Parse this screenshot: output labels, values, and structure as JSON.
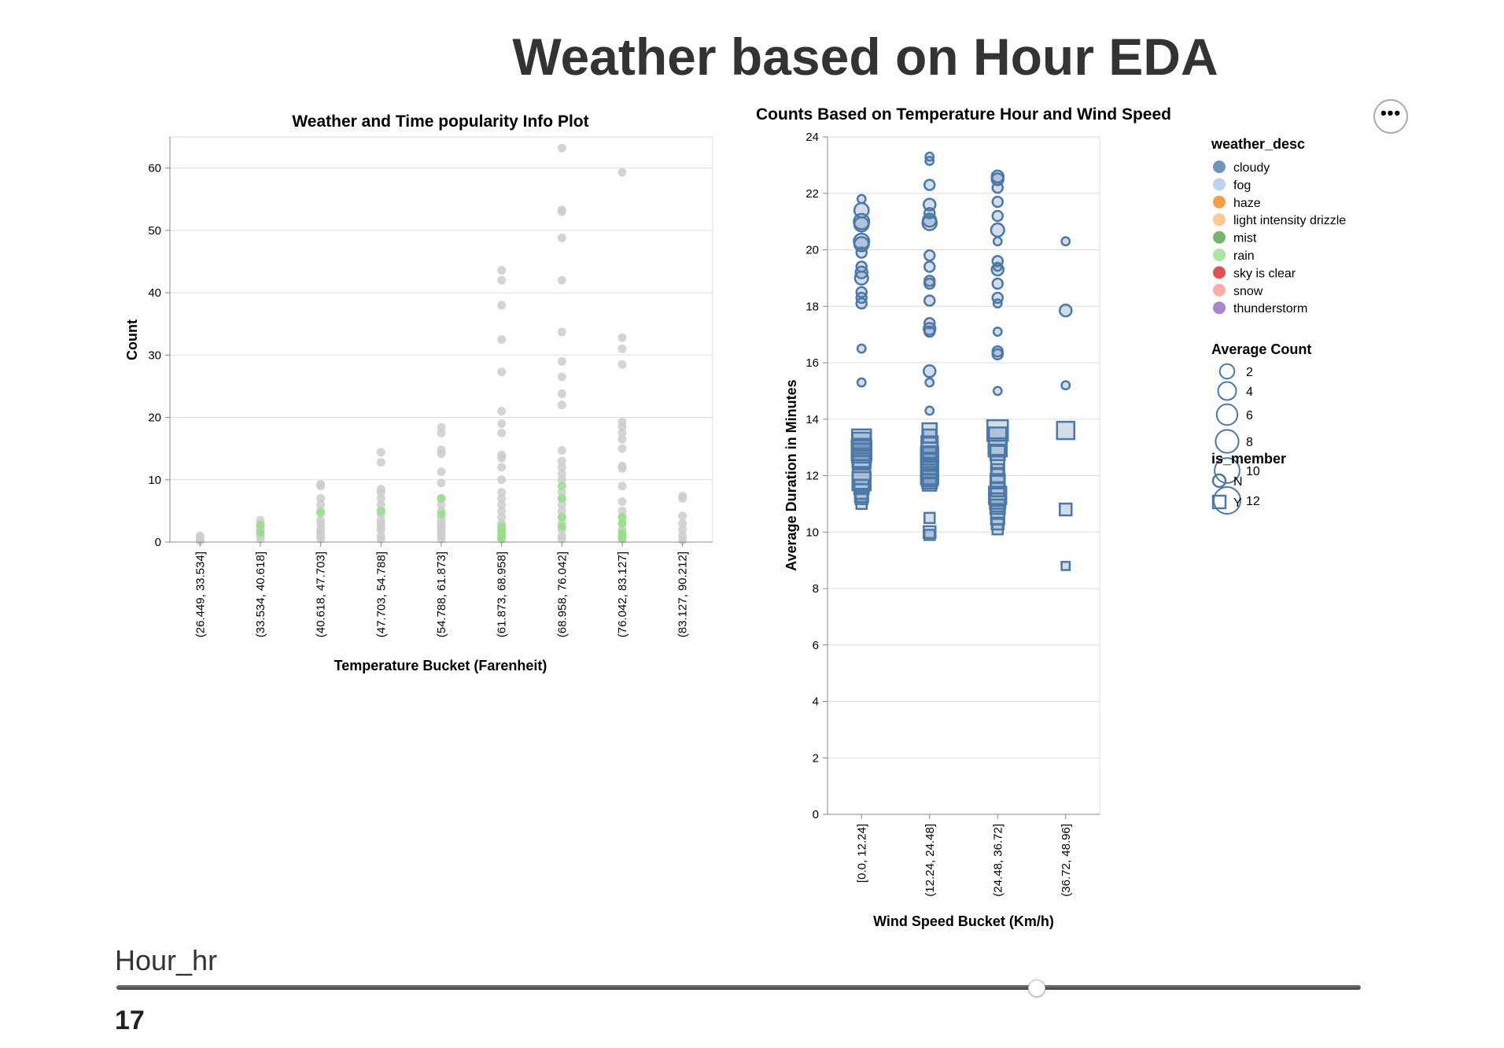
{
  "page": {
    "title": "Weather based on Hour EDA",
    "menu_icon": "ellipsis-icon",
    "slider": {
      "label": "Hour_hr",
      "value": "17",
      "min": 0,
      "max": 23,
      "current": 17
    }
  },
  "chart_data": [
    {
      "type": "scatter",
      "title": "Weather and Time popularity Info Plot",
      "xlabel": "Temperature Bucket (Farenheit)",
      "ylabel": "Count",
      "ylim": [
        0,
        65
      ],
      "yticks": [
        0,
        10,
        20,
        30,
        40,
        50,
        60
      ],
      "grid": true,
      "categories": [
        "(26.449, 33.534]",
        "(33.534, 40.618]",
        "(40.618, 47.703]",
        "(47.703, 54.788]",
        "(54.788, 61.873]",
        "(61.873, 68.958]",
        "(68.958, 76.042]",
        "(76.042, 83.127]",
        "(83.127, 90.212]"
      ],
      "series": [
        {
          "color": "#cccccc",
          "values": [
            [
              0.2,
              0.5,
              0.8,
              1
            ],
            [
              0.5,
              1,
              1.5,
              2,
              2.5,
              3.5
            ],
            [
              0.5,
              1,
              1.5,
              2,
              2.8,
              3.5,
              5,
              6,
              7,
              9,
              9.3
            ],
            [
              0.5,
              1,
              2,
              2.5,
              3,
              3.5,
              4.5,
              5,
              6,
              7,
              8,
              8.5,
              12.8,
              14.4
            ],
            [
              0.5,
              1,
              1.5,
              2,
              2.5,
              3,
              3.5,
              4,
              5,
              6,
              7,
              9.5,
              11.3,
              14.2,
              14.8,
              17.5,
              18.4
            ],
            [
              0.5,
              1,
              2,
              3,
              4,
              5,
              6,
              7,
              8,
              10,
              12,
              13.5,
              14,
              17.5,
              19,
              21,
              27.3,
              32.5,
              38,
              42,
              43.6
            ],
            [
              0.5,
              1,
              2,
              3,
              4,
              5,
              6,
              7,
              8,
              10,
              11,
              12,
              13,
              14.7,
              22,
              23.8,
              26.5,
              29,
              33.7,
              42,
              48.8,
              53,
              53.3,
              63.2
            ],
            [
              0.5,
              1,
              2,
              3,
              4,
              5,
              6.5,
              9,
              11.8,
              12.2,
              15,
              16.5,
              17.5,
              18.5,
              19.3,
              28.5,
              31,
              32.8,
              59.3
            ],
            [
              0.3,
              1,
              2,
              3,
              4.2,
              7,
              7.4
            ]
          ]
        },
        {
          "color": "#98df8a",
          "values": [
            [],
            [
              1.5,
              2.8
            ],
            [
              4.7
            ],
            [
              5
            ],
            [
              4.5,
              7
            ],
            [
              0.5,
              1,
              1.5,
              2,
              2.5
            ],
            [
              2.5,
              4,
              7,
              9
            ],
            [
              0.5,
              1,
              1.5,
              3,
              4
            ],
            []
          ]
        }
      ]
    },
    {
      "type": "scatter",
      "title": "Counts Based on Temperature Hour and Wind Speed",
      "xlabel": "Wind Speed Bucket (Km/h)",
      "ylabel": "Average Duration in Minutes",
      "ylim": [
        0,
        24
      ],
      "yticks": [
        0,
        2,
        4,
        6,
        8,
        10,
        12,
        14,
        16,
        18,
        20,
        22,
        24
      ],
      "grid": true,
      "color": "#4c78a8",
      "categories": [
        "[0.0, 12.24]",
        "(12.24, 24.48]",
        "(24.48, 36.72]",
        "(36.72, 48.96]"
      ],
      "points_member_N": [
        [
          [
            21.8,
            1
          ],
          [
            21.4,
            5
          ],
          [
            21,
            6
          ],
          [
            20.9,
            5
          ],
          [
            20.3,
            6
          ],
          [
            20.2,
            5
          ],
          [
            19.9,
            2
          ],
          [
            19.4,
            2
          ],
          [
            19.2,
            3
          ],
          [
            19,
            4
          ],
          [
            18.5,
            2
          ],
          [
            18.3,
            2
          ],
          [
            18.1,
            2
          ],
          [
            16.5,
            1
          ],
          [
            15.3,
            1
          ]
        ],
        [
          [
            23.3,
            1
          ],
          [
            23.15,
            1
          ],
          [
            22.3,
            2
          ],
          [
            21.6,
            3
          ],
          [
            21.3,
            2
          ],
          [
            21.05,
            4
          ],
          [
            20.95,
            5
          ],
          [
            19.8,
            2
          ],
          [
            19.4,
            2
          ],
          [
            18.9,
            2
          ],
          [
            18.8,
            2
          ],
          [
            18.2,
            2
          ],
          [
            17.4,
            2
          ],
          [
            17.2,
            3
          ],
          [
            17.1,
            2
          ],
          [
            15.7,
            3
          ],
          [
            15.3,
            1
          ],
          [
            14.3,
            1
          ]
        ],
        [
          [
            22.6,
            3
          ],
          [
            22.5,
            3
          ],
          [
            22.2,
            2
          ],
          [
            21.7,
            2
          ],
          [
            21.2,
            2
          ],
          [
            20.7,
            4
          ],
          [
            20.3,
            1
          ],
          [
            19.6,
            2
          ],
          [
            19.4,
            1
          ],
          [
            19.3,
            3
          ],
          [
            18.8,
            2
          ],
          [
            18.3,
            2
          ],
          [
            18.1,
            1
          ],
          [
            17.1,
            1
          ],
          [
            16.4,
            2
          ],
          [
            16.3,
            2
          ],
          [
            15.0,
            1
          ]
        ],
        [
          [
            20.3,
            1
          ],
          [
            17.85,
            3
          ],
          [
            15.2,
            1
          ]
        ]
      ],
      "points_member_Y": [
        [
          [
            13.3,
            10
          ],
          [
            13.2,
            9
          ],
          [
            13.0,
            8
          ],
          [
            12.9,
            11
          ],
          [
            12.8,
            10
          ],
          [
            12.6,
            9
          ],
          [
            12.5,
            7
          ],
          [
            12.0,
            8
          ],
          [
            11.8,
            9
          ],
          [
            11.6,
            5
          ],
          [
            11.3,
            4
          ],
          [
            11.2,
            3
          ],
          [
            11.0,
            2
          ]
        ],
        [
          [
            13.6,
            5
          ],
          [
            13.4,
            4
          ],
          [
            13.1,
            7
          ],
          [
            12.9,
            6
          ],
          [
            12.8,
            4
          ],
          [
            12.7,
            8
          ],
          [
            12.5,
            6
          ],
          [
            12.3,
            5
          ],
          [
            12.2,
            7
          ],
          [
            12.0,
            8
          ],
          [
            11.9,
            6
          ],
          [
            11.8,
            5
          ],
          [
            11.7,
            4
          ],
          [
            10.5,
            2
          ],
          [
            10.0,
            3
          ],
          [
            9.9,
            2
          ]
        ],
        [
          [
            13.6,
            12
          ],
          [
            13.4,
            8
          ],
          [
            13.0,
            9
          ],
          [
            12.8,
            5
          ],
          [
            12.5,
            4
          ],
          [
            12.2,
            3
          ],
          [
            12.0,
            4
          ],
          [
            11.8,
            5
          ],
          [
            11.5,
            4
          ],
          [
            11.3,
            8
          ],
          [
            11.1,
            6
          ],
          [
            10.9,
            5
          ],
          [
            10.7,
            4
          ],
          [
            10.5,
            4
          ],
          [
            10.3,
            3
          ],
          [
            10.1,
            2
          ]
        ],
        [
          [
            13.6,
            8
          ],
          [
            10.8,
            3
          ],
          [
            8.8,
            1
          ]
        ]
      ]
    }
  ],
  "legends": {
    "weather": {
      "title": "weather_desc",
      "items": [
        {
          "label": "cloudy",
          "color": "#4c78a8"
        },
        {
          "label": "fog",
          "color": "#aec7e8"
        },
        {
          "label": "haze",
          "color": "#f58518"
        },
        {
          "label": "light intensity drizzle",
          "color": "#ffbb78"
        },
        {
          "label": "mist",
          "color": "#54a24b"
        },
        {
          "label": "rain",
          "color": "#98df8a"
        },
        {
          "label": "sky is clear",
          "color": "#d62728"
        },
        {
          "label": "snow",
          "color": "#ff9896"
        },
        {
          "label": "thunderstorm",
          "color": "#9467bd"
        }
      ]
    },
    "size": {
      "title": "Average Count",
      "items": [
        "2",
        "4",
        "6",
        "8",
        "10",
        "12"
      ],
      "values": [
        2,
        4,
        6,
        8,
        10,
        12
      ]
    },
    "shape": {
      "title": "is_member",
      "items": [
        "N",
        "Y"
      ]
    }
  }
}
